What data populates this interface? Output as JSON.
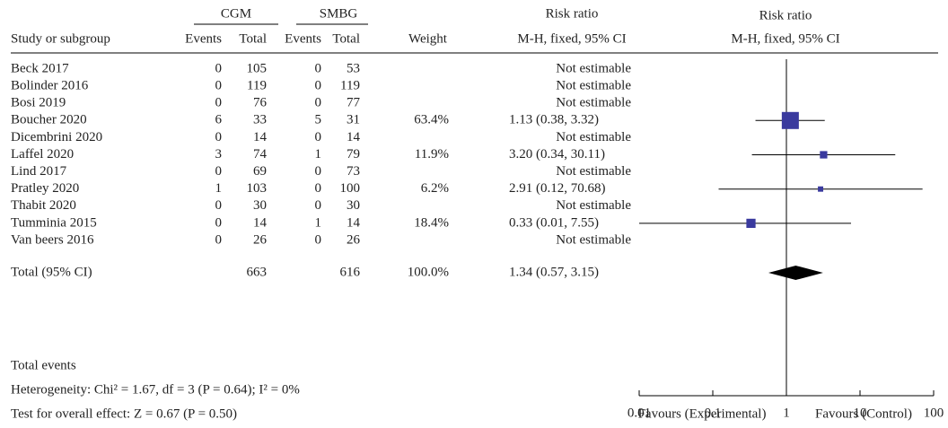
{
  "chart_data": {
    "type": "forest",
    "headers": {
      "study": "Study or subgroup",
      "group1": "CGM",
      "group2": "SMBG",
      "events": "Events",
      "total": "Total",
      "weight": "Weight",
      "measure": "Risk ratio",
      "method": "M-H, fixed, 95% CI"
    },
    "categories": [
      "Beck 2017",
      "Bolinder 2016",
      "Bosi 2019",
      "Boucher 2020",
      "Dicembrini 2020",
      "Laffel 2020",
      "Lind 2017",
      "Pratley 2020",
      "Thabit 2020",
      "Tumminia 2015",
      "Van beers 2016"
    ],
    "events1": [
      0,
      0,
      0,
      6,
      0,
      3,
      0,
      1,
      0,
      0,
      0
    ],
    "total1": [
      105,
      119,
      76,
      33,
      14,
      74,
      69,
      103,
      30,
      14,
      26
    ],
    "events2": [
      0,
      0,
      0,
      5,
      0,
      1,
      0,
      0,
      0,
      1,
      0
    ],
    "total2": [
      53,
      119,
      77,
      31,
      14,
      79,
      73,
      100,
      30,
      14,
      26
    ],
    "weights": [
      null,
      null,
      null,
      63.4,
      null,
      11.9,
      null,
      6.2,
      null,
      18.4,
      null
    ],
    "weight_labels": [
      null,
      null,
      null,
      "63.4%",
      null,
      "11.9%",
      null,
      "6.2%",
      null,
      "18.4%",
      null
    ],
    "values": [
      null,
      null,
      null,
      1.13,
      null,
      3.2,
      null,
      2.91,
      null,
      0.33,
      null
    ],
    "lower": [
      null,
      null,
      null,
      0.38,
      null,
      0.34,
      null,
      0.12,
      null,
      0.01,
      null
    ],
    "upper": [
      null,
      null,
      null,
      3.32,
      null,
      30.11,
      null,
      70.68,
      null,
      7.55,
      null
    ],
    "value_labels": [
      "Not estimable",
      "Not estimable",
      "Not estimable",
      "1.13 (0.38, 3.32)",
      "Not estimable",
      "3.20 (0.34, 30.11)",
      "Not estimable",
      "2.91 (0.12, 70.68)",
      "Not estimable",
      "0.33 (0.01, 7.55)",
      "Not estimable"
    ],
    "color": "#3a3a9e",
    "total": {
      "label": "Total (95% CI)",
      "total1": 663,
      "total2": 616,
      "weight": 100.0,
      "weight_label": "100.0%",
      "value": 1.34,
      "lower": 0.57,
      "upper": 3.15,
      "value_label": "1.34 (0.57, 3.15)",
      "color": "#000000"
    },
    "footer": [
      "Total events",
      "Heterogeneity: Chi² = 1.67, df = 3 (P = 0.64); I² = 0%",
      "Test for overall effect: Z = 0.67 (P = 0.50)"
    ],
    "x_scale": "log",
    "xlim": [
      0.01,
      100
    ],
    "xticks": [
      0.01,
      0.1,
      1,
      10,
      100
    ],
    "favours": [
      "Favours (Experimental)",
      "Favours (Control)"
    ]
  }
}
